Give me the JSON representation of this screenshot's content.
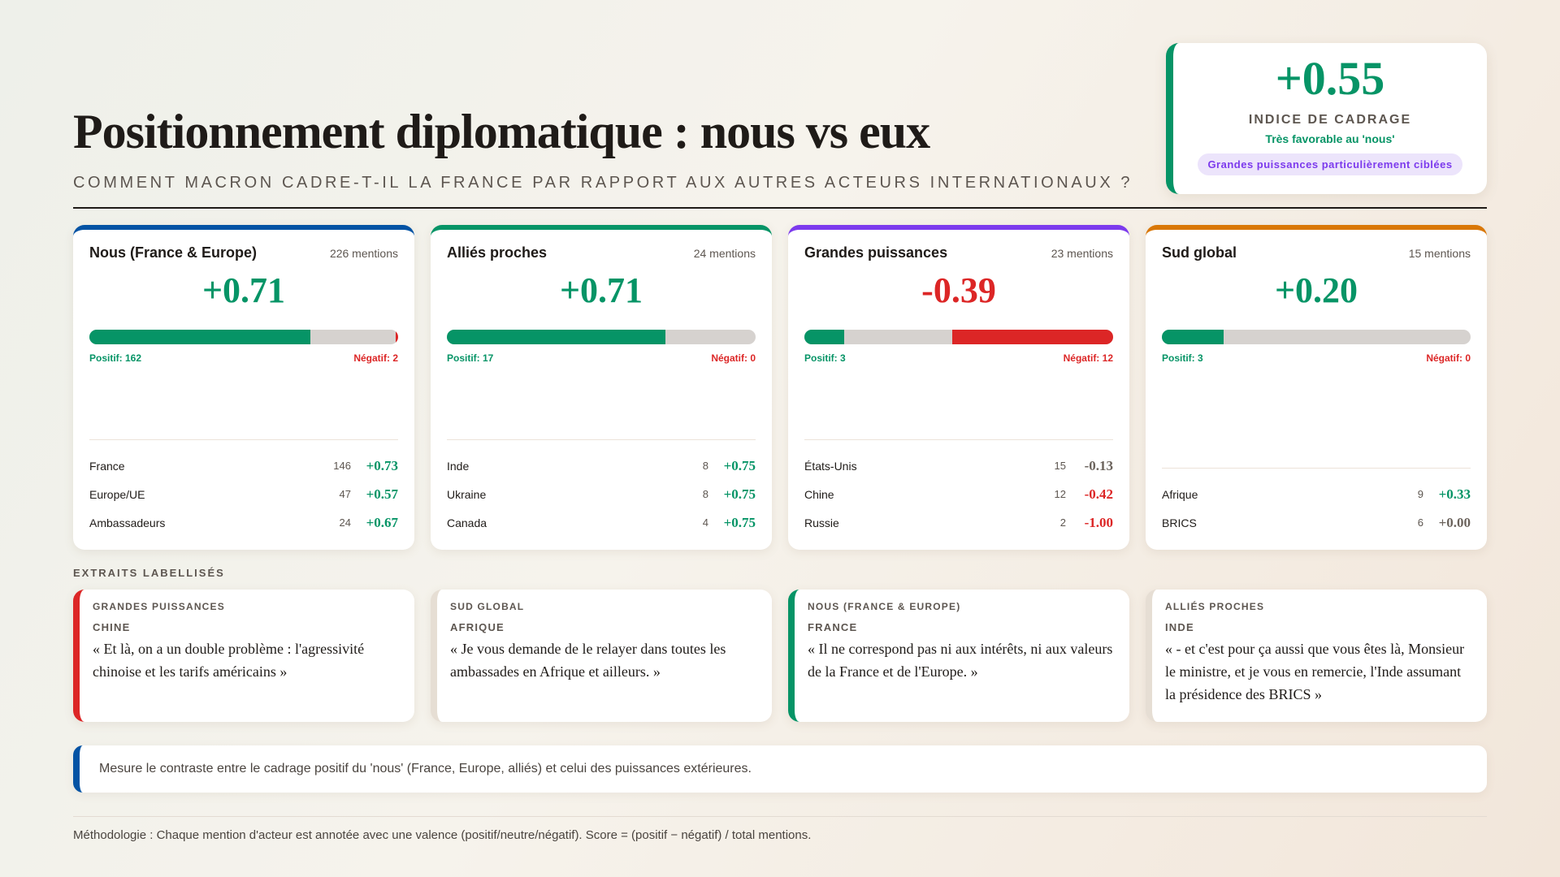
{
  "header": {
    "title": "Positionnement diplomatique : nous vs eux",
    "subtitle": "Comment Macron cadre-t-il la France par rapport aux autres acteurs internationaux ?"
  },
  "index": {
    "value": "+0.55",
    "label": "INDICE DE CADRAGE",
    "verdict": "Très favorable au 'nous'",
    "badge": "Grandes puissances particulièrement ciblées",
    "color": "#069466"
  },
  "colors": {
    "positive": "#069466",
    "negative": "#dc2626",
    "neutral": "#d6d2cf",
    "purple": "#7c3aed"
  },
  "groups": [
    {
      "name": "Nous (France & Europe)",
      "mentions": "226 mentions",
      "score": "+0.71",
      "score_color": "#069466",
      "accent": "#0353a4",
      "pos_frac": 0.717,
      "neg_frac": 0.009,
      "pos_label": "Positif: 162",
      "neg_label": "Négatif: 2",
      "actors": [
        {
          "name": "France",
          "count": "146",
          "score": "+0.73",
          "color": "#069466"
        },
        {
          "name": "Europe/UE",
          "count": "47",
          "score": "+0.57",
          "color": "#069466"
        },
        {
          "name": "Ambassadeurs",
          "count": "24",
          "score": "+0.67",
          "color": "#069466"
        }
      ]
    },
    {
      "name": "Alliés proches",
      "mentions": "24 mentions",
      "score": "+0.71",
      "score_color": "#069466",
      "accent": "#069466",
      "pos_frac": 0.708,
      "neg_frac": 0,
      "pos_label": "Positif: 17",
      "neg_label": "Négatif: 0",
      "actors": [
        {
          "name": "Inde",
          "count": "8",
          "score": "+0.75",
          "color": "#069466"
        },
        {
          "name": "Ukraine",
          "count": "8",
          "score": "+0.75",
          "color": "#069466"
        },
        {
          "name": "Canada",
          "count": "4",
          "score": "+0.75",
          "color": "#069466"
        }
      ]
    },
    {
      "name": "Grandes puissances",
      "mentions": "23 mentions",
      "score": "-0.39",
      "score_color": "#dc2626",
      "accent": "#7c3aed",
      "pos_frac": 0.13,
      "neg_frac": 0.522,
      "pos_label": "Positif: 3",
      "neg_label": "Négatif: 12",
      "actors": [
        {
          "name": "États-Unis",
          "count": "15",
          "score": "-0.13",
          "color": "#6b635c"
        },
        {
          "name": "Chine",
          "count": "12",
          "score": "-0.42",
          "color": "#dc2626"
        },
        {
          "name": "Russie",
          "count": "2",
          "score": "-1.00",
          "color": "#dc2626"
        }
      ]
    },
    {
      "name": "Sud global",
      "mentions": "15 mentions",
      "score": "+0.20",
      "score_color": "#069466",
      "accent": "#d97706",
      "pos_frac": 0.2,
      "neg_frac": 0,
      "pos_label": "Positif: 3",
      "neg_label": "Négatif: 0",
      "actors": [
        {
          "name": "Afrique",
          "count": "9",
          "score": "+0.33",
          "color": "#069466"
        },
        {
          "name": "BRICS",
          "count": "6",
          "score": "+0.00",
          "color": "#6b635c"
        }
      ]
    }
  ],
  "excerpts_title": "EXTRAITS LABELLISÉS",
  "excerpts": [
    {
      "group": "GRANDES PUISSANCES",
      "actor": "CHINE",
      "text": "« Et là, on a un double problème : l'agressivité chinoise et les tarifs américains »",
      "accent": "#dc2626"
    },
    {
      "group": "SUD GLOBAL",
      "actor": "AFRIQUE",
      "text": "« Je vous demande de le relayer dans toutes les ambassades en Afrique et ailleurs. »",
      "accent": "#e6ded4"
    },
    {
      "group": "NOUS (FRANCE & EUROPE)",
      "actor": "FRANCE",
      "text": "« Il ne correspond pas ni aux intérêts, ni aux valeurs de la France et de l'Europe. »",
      "accent": "#069466"
    },
    {
      "group": "ALLIÉS PROCHES",
      "actor": "INDE",
      "text": "« - et c'est pour ça aussi que vous êtes là, Monsieur le ministre, et je vous en remercie, l'Inde assumant la présidence des BRICS »",
      "accent": "#e6ded4"
    }
  ],
  "note": "Mesure le contraste entre le cadrage positif du 'nous' (France, Europe, alliés) et celui des puissances extérieures.",
  "footer": "Méthodologie : Chaque mention d'acteur est annotée avec une valence (positif/neutre/négatif). Score = (positif − négatif) / total mentions."
}
